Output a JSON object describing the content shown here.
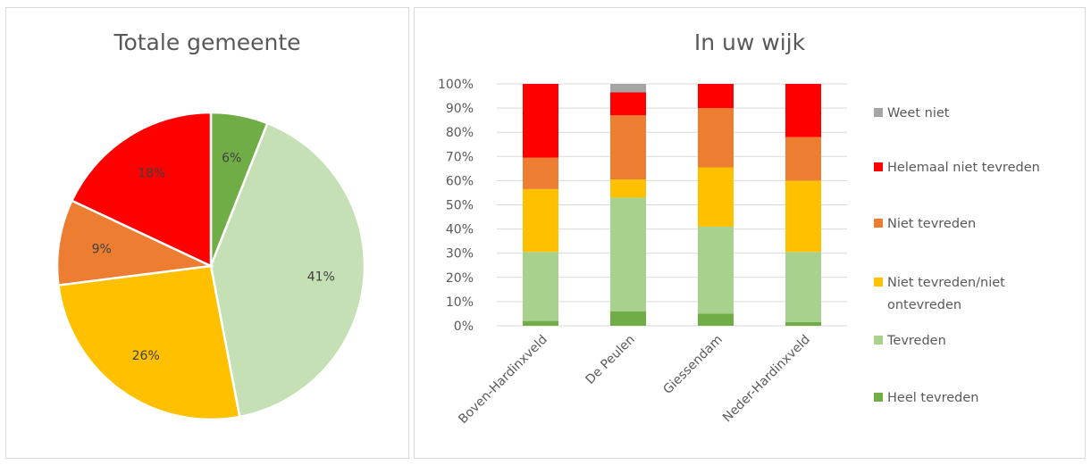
{
  "chart_data": [
    {
      "type": "pie",
      "title": "Totale gemeente",
      "categories": [
        "Heel tevreden",
        "Tevreden",
        "Niet tevreden/niet ontevreden",
        "Niet tevreden",
        "Helemaal niet tevreden"
      ],
      "values": [
        6,
        41,
        26,
        9,
        18
      ],
      "labels": [
        "6%",
        "41%",
        "26%",
        "9%",
        "18%"
      ],
      "colors": [
        "#70ad47",
        "#c5e0b4",
        "#ffc000",
        "#ed7d31",
        "#ff0000"
      ]
    },
    {
      "type": "bar",
      "stacked": true,
      "title": "In uw wijk",
      "categories": [
        "Boven-Hardinxveld",
        "De Peulen",
        "Giessendam",
        "Neder-Hardinxveld"
      ],
      "ylim": [
        0,
        100
      ],
      "yticks": [
        "0%",
        "10%",
        "20%",
        "30%",
        "40%",
        "50%",
        "60%",
        "70%",
        "80%",
        "90%",
        "100%"
      ],
      "legend_position": "right",
      "series": [
        {
          "name": "Heel tevreden",
          "color": "#70ad47",
          "values": [
            2,
            6,
            5,
            1.5
          ]
        },
        {
          "name": "Tevreden",
          "color": "#a9d18e",
          "values": [
            28.5,
            47,
            36,
            29
          ]
        },
        {
          "name": "Niet tevreden/niet ontevreden",
          "color": "#ffc000",
          "values": [
            26,
            7.5,
            24.5,
            29.5
          ]
        },
        {
          "name": "Niet tevreden",
          "color": "#ed7d31",
          "values": [
            13,
            26.5,
            24.5,
            18
          ]
        },
        {
          "name": "Helemaal niet tevreden",
          "color": "#ff0000",
          "values": [
            30.5,
            9.5,
            10,
            22
          ]
        },
        {
          "name": "Weet niet",
          "color": "#a5a5a5",
          "values": [
            0,
            3.5,
            0,
            0
          ]
        }
      ],
      "legend": [
        {
          "name": "Weet niet",
          "color": "#a5a5a5",
          "lines": [
            "Weet niet"
          ]
        },
        {
          "name": "Helemaal niet tevreden",
          "color": "#ff0000",
          "lines": [
            "Helemaal niet tevreden"
          ]
        },
        {
          "name": "Niet tevreden",
          "color": "#ed7d31",
          "lines": [
            "Niet tevreden"
          ]
        },
        {
          "name": "Niet tevreden/niet ontevreden",
          "color": "#ffc000",
          "lines": [
            "Niet tevreden/niet",
            "ontevreden"
          ]
        },
        {
          "name": "Tevreden",
          "color": "#a9d18e",
          "lines": [
            "Tevreden"
          ]
        },
        {
          "name": "Heel tevreden",
          "color": "#70ad47",
          "lines": [
            "Heel tevreden"
          ]
        }
      ]
    }
  ]
}
